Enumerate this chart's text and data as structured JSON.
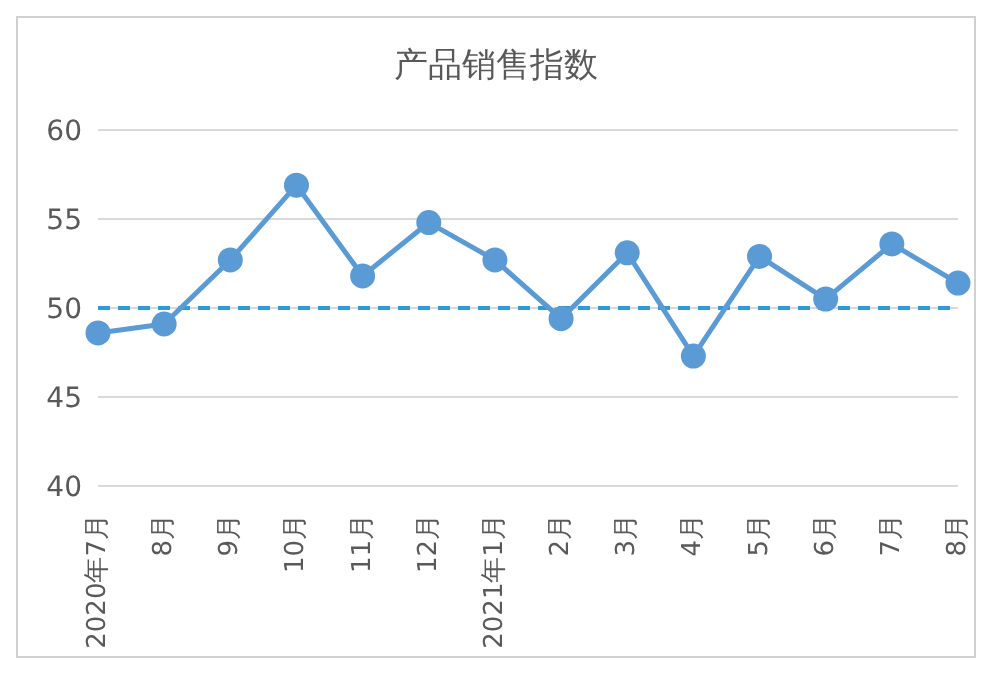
{
  "chart_data": {
    "type": "line",
    "title": "产品销售指数",
    "categories": [
      "2020年7月",
      "8月",
      "9月",
      "10月",
      "11月",
      "12月",
      "2021年1月",
      "2月",
      "3月",
      "4月",
      "5月",
      "6月",
      "7月",
      "8月"
    ],
    "series": [
      {
        "color": "#5b9bd5",
        "values": [
          48.6,
          49.1,
          52.7,
          56.9,
          51.8,
          54.8,
          52.7,
          49.4,
          53.1,
          47.3,
          52.9,
          50.5,
          53.6,
          51.4
        ]
      }
    ],
    "ylim": [
      40,
      60
    ],
    "yticks": [
      40,
      45,
      50,
      55,
      60
    ],
    "grid": "y",
    "marker": "circle",
    "line_style": "solid",
    "legend": false,
    "ref_lines": [
      {
        "axis": "y",
        "value": 50,
        "color": "#2e9bd6",
        "line_style": "dashed"
      }
    ]
  }
}
